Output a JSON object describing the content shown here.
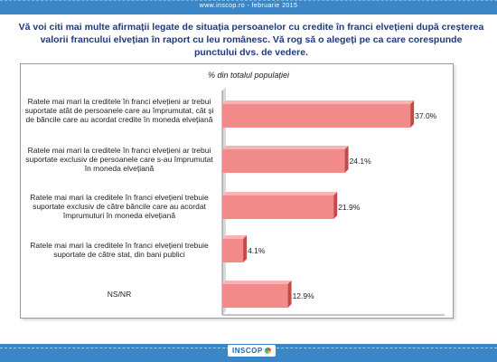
{
  "header": {
    "meta_text": "www.inscop.ro   -   februarie 2015"
  },
  "question": "Vă voi citi mai multe afirmații legate de situația persoanelor cu credite în franci elvețieni după creșterea valorii francului elvețian în raport cu leu românesc. Vă rog să o alegeți pe ca care corespunde punctului dvs. de vedere.",
  "footer": {
    "logo_text": "INSCOP"
  },
  "colors": {
    "bar": "#f28a8a",
    "bar_dark": "#c44a4a",
    "bar_top": "#f9b3b3",
    "band": "#3a86c6"
  },
  "chart_data": {
    "type": "bar",
    "orientation": "horizontal",
    "title": "% din totalul populației",
    "categories": [
      "Ratele mai mari la creditele în franci elvețieni ar trebui suportate atât de persoanele care au împrumutat, cât și de băncile care au acordat credite în moneda elvețiană",
      "Ratele mai mari la creditele în franci elvețieni ar trebui suportate exclusiv de persoanele care s-au împrumutat în moneda elvețiană",
      "Ratele mai mari la creditele în franci elvețieni trebuie suportate exclusiv de către băncile care au acordat împrumuturi în moneda elvețiană",
      "Ratele mai mari la creditele în franci elvețieni trebuie suportate de către stat, din bani publici",
      "NS/NR"
    ],
    "values": [
      37.0,
      24.1,
      21.9,
      4.1,
      12.9
    ],
    "data_labels": [
      "37.0%",
      "24.1%",
      "21.9%",
      "4.1%",
      "12.9%"
    ],
    "xlim": [
      0,
      40
    ],
    "grid": false,
    "legend": "none"
  }
}
